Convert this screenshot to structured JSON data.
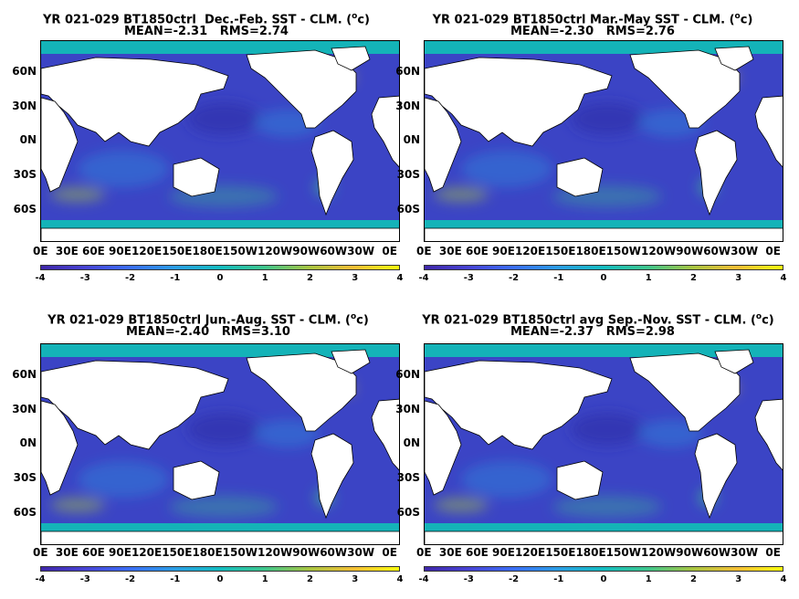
{
  "panels": [
    {
      "title_line1": "YR 021-029 BT1850ctrl  Dec.-Feb. SST - CLM. (",
      "unit_sup": "o",
      "unit_end": "c)",
      "title_line2": "MEAN=-2.31   RMS=2.74"
    },
    {
      "title_line1": "YR 021-029 BT1850ctrl Mar.-May SST - CLM. (",
      "unit_sup": "o",
      "unit_end": "c)",
      "title_line2": "MEAN=-2.30   RMS=2.76"
    },
    {
      "title_line1": "YR 021-029 BT1850ctrl Jun.-Aug. SST - CLM. (",
      "unit_sup": "o",
      "unit_end": "c)",
      "title_line2": "MEAN=-2.40   RMS=3.10"
    },
    {
      "title_line1": "YR 021-029 BT1850ctrl avg Sep.-Nov. SST - CLM. (",
      "unit_sup": "o",
      "unit_end": "c)",
      "title_line2": "MEAN=-2.37   RMS=2.98"
    }
  ],
  "lat_labels": [
    "60N",
    "30N",
    "0N",
    "30S",
    "60S"
  ],
  "lon_labels_text": "0E  30E 60E 90E120E150E180E150W120W90W60W30W  0E",
  "colorbar": {
    "ticks": [
      "-4",
      "-3",
      "-2",
      "-1",
      "0",
      "1",
      "2",
      "3",
      "4"
    ],
    "range": [
      -4,
      4
    ],
    "colors": [
      "#3e26a8",
      "#4743d4",
      "#3a6ef5",
      "#2a9de3",
      "#13bcc0",
      "#3ec58b",
      "#a8c440",
      "#f4be34",
      "#f9fb0e"
    ]
  },
  "colors": {
    "ocean_base": "#3b44c5",
    "land": "#ffffff",
    "polar": "#14b3b8"
  }
}
